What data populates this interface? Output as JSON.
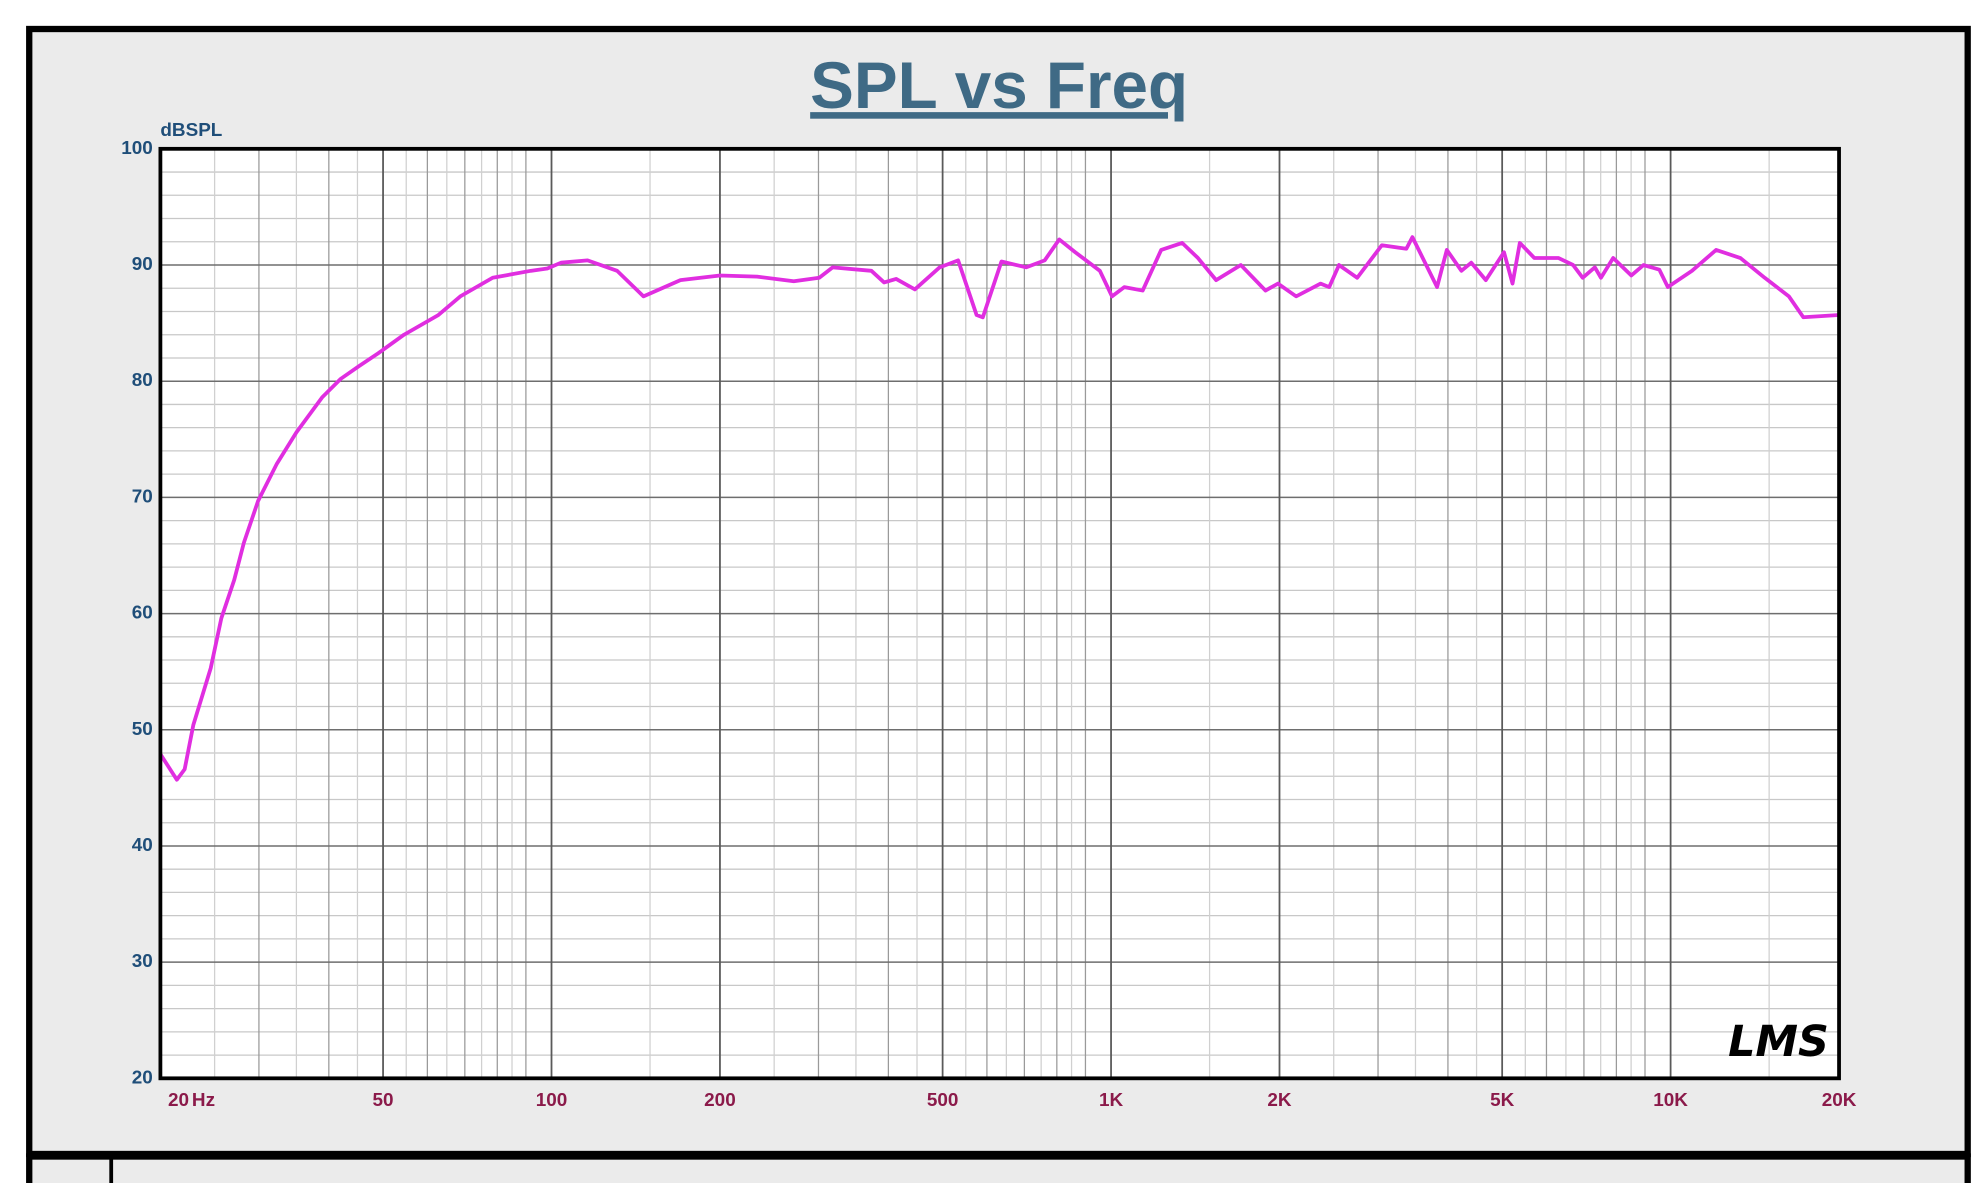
{
  "chart_data": {
    "type": "line",
    "title": "SPL vs Freq",
    "y_label": "dBSPL",
    "x_label": "Hz",
    "logo": "LMS",
    "xscale": "log",
    "grid": true,
    "xlim": [
      20,
      20000
    ],
    "ylim": [
      20,
      100
    ],
    "xticks": [
      20,
      50,
      100,
      200,
      500,
      {
        "value": 1000,
        "label": "1K"
      },
      {
        "value": 2000,
        "label": "2K"
      },
      {
        "value": 5000,
        "label": "5K"
      },
      {
        "value": 10000,
        "label": "10K"
      },
      {
        "value": 20000,
        "label": "20K"
      }
    ],
    "yticks": [
      20,
      30,
      40,
      50,
      60,
      70,
      80,
      90,
      100
    ],
    "x": [
      20,
      21.4,
      22.1,
      22.9,
      24.6,
      25.7,
      27.1,
      28.2,
      29.9,
      32.3,
      35,
      38.9,
      42,
      45.3,
      49,
      54.5,
      62.8,
      68.7,
      78.5,
      91.8,
      98.3,
      104,
      116,
      131,
      146,
      170,
      200,
      233,
      271,
      301,
      318,
      373,
      393,
      413,
      446,
      494,
      533,
      575,
      590,
      637,
      705,
      761,
      808,
      863,
      955,
      1004,
      1056,
      1139,
      1229,
      1340,
      1430,
      1541,
      1706,
      1888,
      1987,
      2142,
      2369,
      2454,
      2555,
      2754,
      3047,
      3371,
      3456,
      3825,
      3982,
      4228,
      4403,
      4675,
      5038,
      5218,
      5377,
      5709,
      6307,
      6694,
      6964,
      7322,
      7508,
      7895,
      8508,
      8945,
      9547,
      9887,
      10920,
      12060,
      13330,
      14730,
      16270,
      17270,
      20000
    ],
    "series": [
      {
        "name": "SPL",
        "color": "#e02ee0",
        "values": [
          47.9,
          45.7,
          46.6,
          50.4,
          55.3,
          59.6,
          62.9,
          66.1,
          69.7,
          72.9,
          75.6,
          78.6,
          80.2,
          81.3,
          82.4,
          84.0,
          85.7,
          87.3,
          88.9,
          89.5,
          89.7,
          90.2,
          90.4,
          89.5,
          87.3,
          88.7,
          89.1,
          89.0,
          88.6,
          88.9,
          89.8,
          89.5,
          88.5,
          88.8,
          87.9,
          89.8,
          90.4,
          85.7,
          85.5,
          90.3,
          89.8,
          90.4,
          92.2,
          91.1,
          89.5,
          87.3,
          88.1,
          87.8,
          91.3,
          91.9,
          90.6,
          88.7,
          90.0,
          87.8,
          88.4,
          87.3,
          88.4,
          88.1,
          90.0,
          88.9,
          91.7,
          91.4,
          92.4,
          88.1,
          91.3,
          89.5,
          90.2,
          88.7,
          91.1,
          88.4,
          91.9,
          90.6,
          90.6,
          90.0,
          88.9,
          89.8,
          88.9,
          90.6,
          89.1,
          90.0,
          89.6,
          88.1,
          89.5,
          91.3,
          90.6,
          88.9,
          87.3,
          85.5,
          85.7
        ]
      }
    ]
  }
}
